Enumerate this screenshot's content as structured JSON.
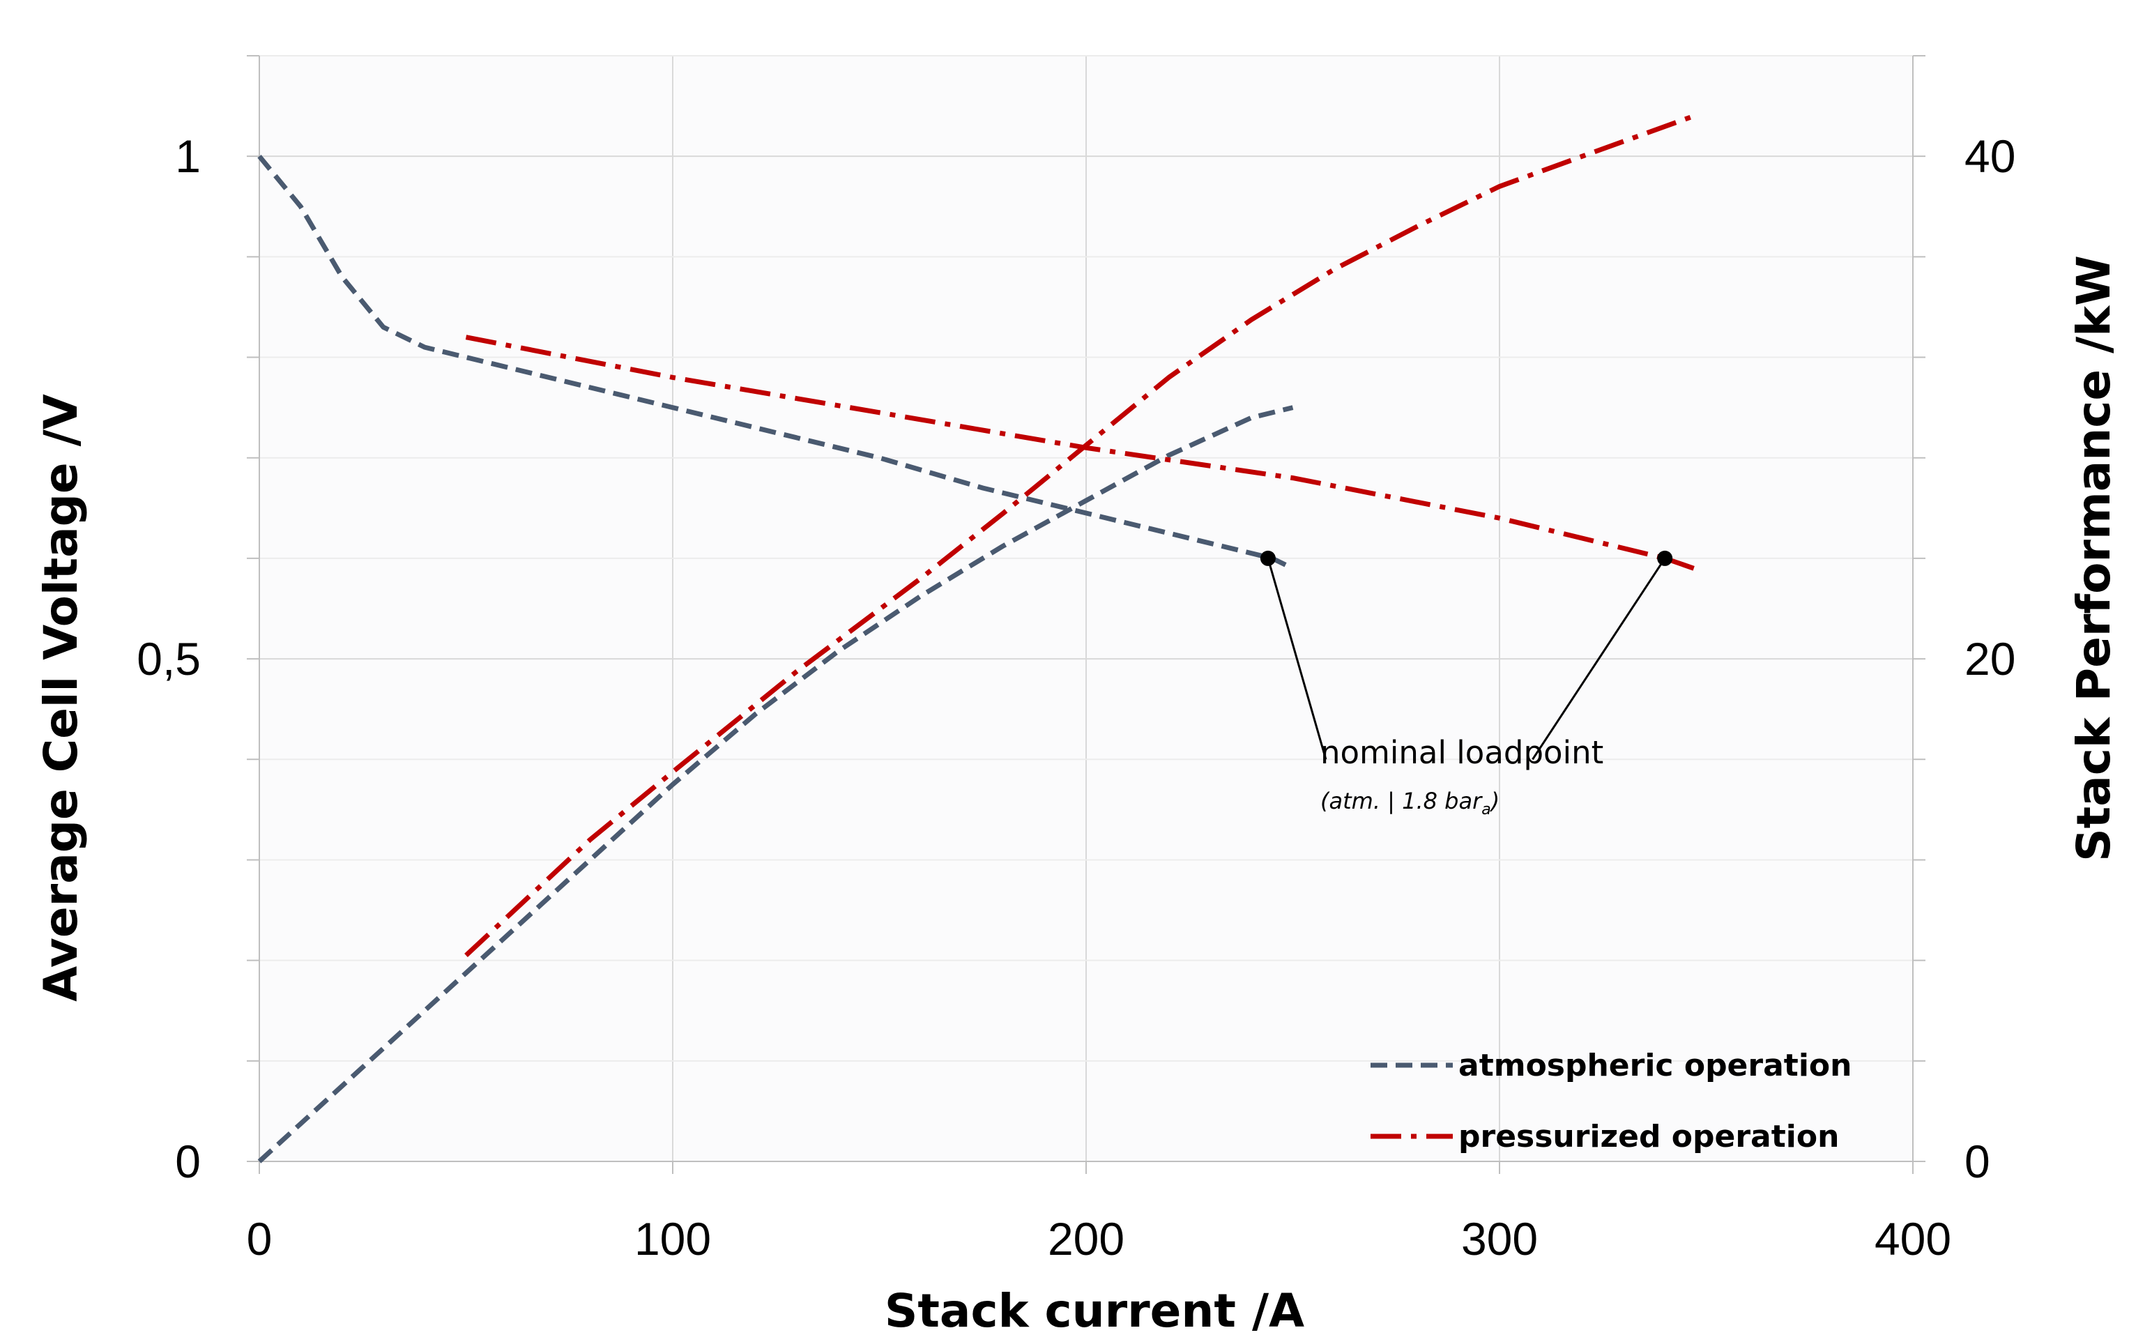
{
  "chart_data": {
    "type": "line",
    "xlabel": "Stack current /A",
    "ylabel": "Average Cell Voltage /V",
    "y2label": "Stack Performance /kW",
    "xlim": [
      0,
      400
    ],
    "ylim": [
      0,
      1.1
    ],
    "y2lim": [
      0,
      44
    ],
    "x_ticks": [
      0,
      100,
      200,
      300,
      400
    ],
    "x_tick_labels": [
      "0",
      "100",
      "200",
      "300",
      "400"
    ],
    "y_ticks": [
      0,
      0.5,
      1
    ],
    "y_tick_labels": [
      "0",
      "0,5",
      "1"
    ],
    "y2_ticks": [
      0,
      20,
      40
    ],
    "y2_tick_labels": [
      "0",
      "20",
      "40"
    ],
    "grid": true,
    "legend_position": "bottom-right",
    "series": [
      {
        "name": "atmospheric operation",
        "axis": "left",
        "quantity": "voltage",
        "color": "#4A5A70",
        "style": "dashed",
        "x": [
          0,
          10,
          20,
          30,
          40,
          50,
          75,
          100,
          125,
          150,
          175,
          200,
          225,
          245,
          250
        ],
        "y": [
          1.0,
          0.95,
          0.88,
          0.83,
          0.81,
          0.8,
          0.775,
          0.75,
          0.725,
          0.7,
          0.67,
          0.645,
          0.62,
          0.6,
          0.59
        ]
      },
      {
        "name": "atmospheric operation",
        "axis": "right",
        "quantity": "power",
        "color": "#4A5A70",
        "style": "dashed",
        "x": [
          0,
          10,
          20,
          40,
          60,
          80,
          100,
          120,
          140,
          160,
          180,
          200,
          220,
          240,
          250
        ],
        "y": [
          0,
          1.5,
          3,
          6,
          9,
          12,
          15,
          17.8,
          20.3,
          22.5,
          24.5,
          26.3,
          28.1,
          29.6,
          30.0
        ]
      },
      {
        "name": "pressurized operation",
        "axis": "left",
        "quantity": "voltage",
        "color": "#C00000",
        "style": "dash-dot",
        "x": [
          50,
          100,
          150,
          200,
          250,
          300,
          340,
          347
        ],
        "y": [
          0.82,
          0.78,
          0.745,
          0.71,
          0.68,
          0.64,
          0.6,
          0.59
        ]
      },
      {
        "name": "pressurized operation",
        "axis": "right",
        "quantity": "power",
        "color": "#C00000",
        "style": "dash-dot",
        "x": [
          50,
          80,
          100,
          130,
          160,
          180,
          200,
          220,
          240,
          260,
          280,
          300,
          320,
          347
        ],
        "y": [
          8.2,
          12.8,
          15.5,
          19.5,
          23.2,
          25.8,
          28.5,
          31.2,
          33.5,
          35.5,
          37.2,
          38.8,
          40.0,
          41.6
        ]
      }
    ],
    "markers": [
      {
        "x": 244,
        "y": 0.6
      },
      {
        "x": 340,
        "y": 0.6
      }
    ],
    "annotation": {
      "text": "nominal loadpoint",
      "subtext_prefix": "(atm. | 1.8 bar",
      "subtext_subscript": "a",
      "subtext_suffix": ")",
      "anchor": {
        "x": 258,
        "y": 0.4
      }
    }
  }
}
